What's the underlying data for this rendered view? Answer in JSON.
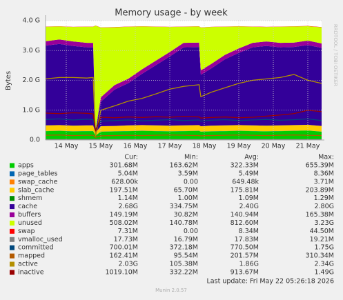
{
  "chart_data": {
    "type": "area",
    "title": "Memory usage - by week",
    "ylabel": "Bytes",
    "side_text": "RRDTOOL / TOBI OETIKER",
    "last_update": "Last update: Fri May 22 05:26:18 2026",
    "footer": "Munin 2.0.57",
    "x": [
      13.4,
      13.8,
      14.2,
      14.6,
      14.78,
      14.85,
      15.0,
      15.4,
      15.8,
      16.2,
      16.6,
      17.0,
      17.4,
      17.85,
      17.9,
      18.2,
      18.6,
      19.0,
      19.4,
      19.8,
      20.2,
      20.6,
      21.0,
      21.4
    ],
    "xlim": [
      13.4,
      21.4
    ],
    "xticks": [
      {
        "value": 14,
        "label": "14 May"
      },
      {
        "value": 15,
        "label": "15 May"
      },
      {
        "value": 16,
        "label": "16 May"
      },
      {
        "value": 17,
        "label": "17 May"
      },
      {
        "value": 18,
        "label": "18 May"
      },
      {
        "value": 19,
        "label": "19 May"
      },
      {
        "value": 20,
        "label": "20 May"
      },
      {
        "value": 21,
        "label": "21 May"
      }
    ],
    "ylim": [
      0,
      4294967296
    ],
    "yticks": [
      {
        "value": 0,
        "label": "0.0"
      },
      {
        "value": 1073741824,
        "label": "1.0 G"
      },
      {
        "value": 2147483648,
        "label": "2.0 G"
      },
      {
        "value": 3221225472,
        "label": "3.0 G"
      },
      {
        "value": 4294967296,
        "label": "4.0 G"
      }
    ],
    "grid": true,
    "summary_columns": [
      "Cur:",
      "Min:",
      "Avg:",
      "Max:"
    ],
    "series": [
      {
        "name": "apps",
        "color": "#00cc00",
        "draw": "stack",
        "summary": [
          "301.68M",
          "163.62M",
          "322.33M",
          "655.39M"
        ],
        "values": [
          320000000.0,
          330000000.0,
          310000000.0,
          320000000.0,
          320000000.0,
          160000000.0,
          300000000.0,
          310000000.0,
          320000000.0,
          330000000.0,
          320000000.0,
          310000000.0,
          320000000.0,
          330000000.0,
          300000000.0,
          310000000.0,
          320000000.0,
          330000000.0,
          320000000.0,
          310000000.0,
          320000000.0,
          330000000.0,
          340000000.0,
          300000000.0
        ]
      },
      {
        "name": "page_tables",
        "color": "#0066b3",
        "draw": "stack",
        "summary": [
          "5.04M",
          "3.59M",
          "5.49M",
          "8.36M"
        ],
        "values": [
          5200000.0,
          5200000.0,
          5200000.0,
          5200000.0,
          5200000.0,
          3600000.0,
          5200000.0,
          5200000.0,
          5200000.0,
          5200000.0,
          5200000.0,
          5200000.0,
          5200000.0,
          5200000.0,
          5200000.0,
          5200000.0,
          5200000.0,
          5200000.0,
          5200000.0,
          5200000.0,
          5200000.0,
          5200000.0,
          5200000.0,
          5200000.0
        ]
      },
      {
        "name": "swap_cache",
        "color": "#ff8000",
        "draw": "stack",
        "summary": [
          "628.00k",
          "0.00",
          "649.48k",
          "3.71M"
        ],
        "values": [
          630000.0,
          630000.0,
          630000.0,
          630000.0,
          630000.0,
          0,
          630000.0,
          630000.0,
          630000.0,
          630000.0,
          630000.0,
          630000.0,
          630000.0,
          630000.0,
          630000.0,
          630000.0,
          630000.0,
          630000.0,
          630000.0,
          630000.0,
          630000.0,
          630000.0,
          630000.0,
          630000.0
        ]
      },
      {
        "name": "slab_cache",
        "color": "#ffcc00",
        "draw": "stack",
        "summary": [
          "197.51M",
          "65.70M",
          "175.81M",
          "203.89M"
        ],
        "values": [
          200000000.0,
          200000000.0,
          200000000.0,
          200000000.0,
          200000000.0,
          100000000.0,
          190000000.0,
          190000000.0,
          200000000.0,
          200000000.0,
          200000000.0,
          200000000.0,
          200000000.0,
          200000000.0,
          190000000.0,
          200000000.0,
          200000000.0,
          200000000.0,
          200000000.0,
          200000000.0,
          200000000.0,
          200000000.0,
          200000000.0,
          200000000.0
        ]
      },
      {
        "name": "shmem",
        "color": "#008f00",
        "draw": "stack",
        "summary": [
          "1.14M",
          "1.00M",
          "1.09M",
          "1.29M"
        ],
        "values": [
          1100000.0,
          1100000.0,
          1100000.0,
          1100000.0,
          1100000.0,
          1000000.0,
          1100000.0,
          1100000.0,
          1100000.0,
          1100000.0,
          1100000.0,
          1100000.0,
          1100000.0,
          1100000.0,
          1100000.0,
          1100000.0,
          1100000.0,
          1100000.0,
          1100000.0,
          1100000.0,
          1100000.0,
          1100000.0,
          1100000.0,
          1100000.0
        ]
      },
      {
        "name": "cache",
        "color": "#330099",
        "draw": "stack",
        "summary": [
          "2.68G",
          "334.75M",
          "2.40G",
          "2.80G"
        ],
        "values": [
          2870000000.0,
          2920000000.0,
          2870000000.0,
          2810000000.0,
          2810000000.0,
          50000000.0,
          880000000.0,
          1310000000.0,
          1520000000.0,
          1850000000.0,
          2170000000.0,
          2490000000.0,
          2810000000.0,
          2810000000.0,
          1850000000.0,
          2060000000.0,
          2380000000.0,
          2600000000.0,
          2810000000.0,
          2870000000.0,
          2810000000.0,
          2810000000.0,
          2870000000.0,
          2810000000.0
        ]
      },
      {
        "name": "buffers",
        "color": "#990099",
        "draw": "stack",
        "summary": [
          "149.19M",
          "30.82M",
          "140.94M",
          "165.38M"
        ],
        "values": [
          160000000.0,
          160000000.0,
          160000000.0,
          160000000.0,
          160000000.0,
          30000000.0,
          160000000.0,
          160000000.0,
          160000000.0,
          160000000.0,
          160000000.0,
          160000000.0,
          160000000.0,
          160000000.0,
          160000000.0,
          160000000.0,
          160000000.0,
          160000000.0,
          160000000.0,
          160000000.0,
          160000000.0,
          160000000.0,
          160000000.0,
          160000000.0
        ]
      },
      {
        "name": "unused",
        "color": "#ccff00",
        "draw": "stack",
        "summary": [
          "508.02M",
          "140.78M",
          "812.60M",
          "3.23G"
        ],
        "values": [
          520000000.0,
          470000000.0,
          520000000.0,
          580000000.0,
          580000000.0,
          3770000000.0,
          2510000000.0,
          2080000000.0,
          1870000000.0,
          1540000000.0,
          1220000000.0,
          900000000.0,
          580000000.0,
          580000000.0,
          1540000000.0,
          1330000000.0,
          1010000000.0,
          790000000.0,
          580000000.0,
          520000000.0,
          580000000.0,
          580000000.0,
          520000000.0,
          580000000.0
        ]
      },
      {
        "name": "swap",
        "color": "#ff0000",
        "draw": "stack",
        "summary": [
          "7.31M",
          "0.00",
          "8.34M",
          "44.50M"
        ],
        "values": [
          7300000.0,
          7300000.0,
          7300000.0,
          7300000.0,
          7300000.0,
          7300000.0,
          7300000.0,
          7300000.0,
          7300000.0,
          7300000.0,
          7300000.0,
          7300000.0,
          7300000.0,
          7300000.0,
          7300000.0,
          7300000.0,
          7300000.0,
          7300000.0,
          7300000.0,
          7300000.0,
          7300000.0,
          7300000.0,
          7300000.0,
          7300000.0
        ]
      },
      {
        "name": "vmalloc_used",
        "color": "#808080",
        "draw": "line",
        "summary": [
          "17.73M",
          "16.79M",
          "17.83M",
          "19.21M"
        ],
        "values": [
          18000000.0,
          18000000.0,
          18000000.0,
          18000000.0,
          18000000.0,
          17000000.0,
          18000000.0,
          18000000.0,
          18000000.0,
          18000000.0,
          18000000.0,
          18000000.0,
          18000000.0,
          18000000.0,
          18000000.0,
          18000000.0,
          18000000.0,
          18000000.0,
          18000000.0,
          18000000.0,
          18000000.0,
          18000000.0,
          18000000.0,
          18000000.0
        ]
      },
      {
        "name": "committed",
        "color": "#00487d",
        "draw": "line",
        "summary": [
          "700.01M",
          "372.18M",
          "770.50M",
          "1.75G"
        ],
        "values": [
          740000000.0,
          760000000.0,
          720000000.0,
          750000000.0,
          730000000.0,
          380000000.0,
          680000000.0,
          700000000.0,
          720000000.0,
          690000000.0,
          710000000.0,
          730000000.0,
          700000000.0,
          720000000.0,
          680000000.0,
          710000000.0,
          730000000.0,
          700000000.0,
          720000000.0,
          740000000.0,
          710000000.0,
          730000000.0,
          760000000.0,
          700000000.0
        ]
      },
      {
        "name": "mapped",
        "color": "#b35a00",
        "draw": "line",
        "summary": [
          "162.41M",
          "95.54M",
          "201.57M",
          "310.34M"
        ],
        "values": [
          170000000.0,
          180000000.0,
          160000000.0,
          170000000.0,
          170000000.0,
          96000000.0,
          150000000.0,
          160000000.0,
          170000000.0,
          160000000.0,
          170000000.0,
          180000000.0,
          170000000.0,
          160000000.0,
          150000000.0,
          160000000.0,
          170000000.0,
          180000000.0,
          170000000.0,
          160000000.0,
          170000000.0,
          180000000.0,
          170000000.0,
          160000000.0
        ]
      },
      {
        "name": "active",
        "color": "#b38f00",
        "draw": "line",
        "summary": [
          "2.03G",
          "105.38M",
          "1.86G",
          "2.34G"
        ],
        "values": [
          2200000000.0,
          2250000000.0,
          2250000000.0,
          2230000000.0,
          2250000000.0,
          130000000.0,
          1070000000.0,
          1230000000.0,
          1400000000.0,
          1500000000.0,
          1660000000.0,
          1830000000.0,
          1930000000.0,
          1990000000.0,
          1560000000.0,
          1720000000.0,
          1880000000.0,
          2040000000.0,
          2150000000.0,
          2200000000.0,
          2250000000.0,
          2360000000.0,
          2150000000.0,
          2040000000.0
        ]
      },
      {
        "name": "inactive",
        "color": "#990000",
        "draw": "line",
        "summary": [
          "1019.10M",
          "332.22M",
          "913.67M",
          "1.49G"
        ],
        "values": [
          970000000.0,
          950000000.0,
          980000000.0,
          960000000.0,
          940000000.0,
          320000000.0,
          820000000.0,
          800000000.0,
          830000000.0,
          810000000.0,
          840000000.0,
          820000000.0,
          850000000.0,
          830000000.0,
          790000000.0,
          810000000.0,
          830000000.0,
          800000000.0,
          820000000.0,
          860000000.0,
          900000000.0,
          950000000.0,
          1070000000.0,
          1020000000.0
        ]
      }
    ]
  }
}
